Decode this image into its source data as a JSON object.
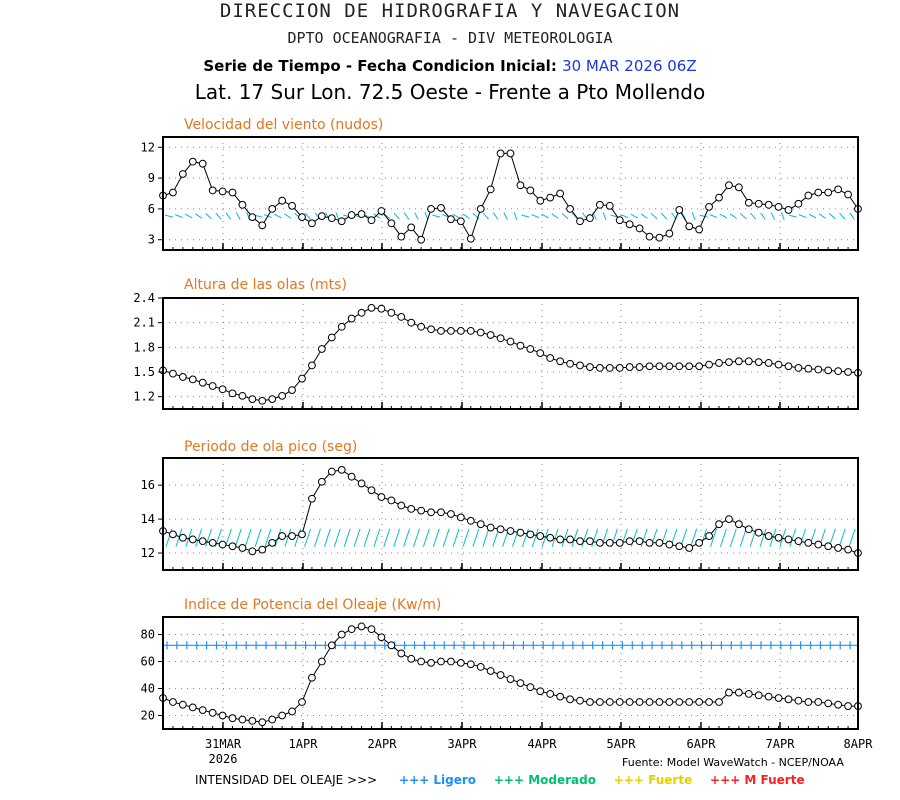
{
  "header": {
    "line1": "DIRECCION DE HIDROGRAFIA Y NAVEGACION",
    "line2": "DPTO OCEANOGRAFIA - DIV METEOROLOGIA",
    "line3_label": "Serie de Tiempo - Fecha Condicion Inicial:",
    "line3_date": "30 MAR 2026 06Z",
    "line4": "Lat. 17 Sur  Lon. 72.5 Oeste - Frente a Pto Mollendo"
  },
  "source": "Fuente: Model WaveWatch - NCEP/NOAA",
  "legend": {
    "label": "INTENSIDAD DEL OLEAJE >>>",
    "items": [
      {
        "text": "+++ Ligero",
        "color": "#1e90ff"
      },
      {
        "text": "+++ Moderado",
        "color": "#00c070"
      },
      {
        "text": "+++ Fuerte",
        "color": "#e8d000"
      },
      {
        "text": "+++ M Fuerte",
        "color": "#ff2020"
      }
    ]
  },
  "colors": {
    "title": "#e07820",
    "arrows": "#00bcd4",
    "threshold": "#1e90ff",
    "line": "#000000"
  },
  "chart_data": [
    {
      "type": "line",
      "title": "Velocidad del viento (nudos)",
      "ylim": [
        2,
        13
      ],
      "yticks": [
        3,
        6,
        9,
        12
      ],
      "arrows": true,
      "values": [
        7.3,
        7.6,
        9.4,
        10.6,
        10.4,
        7.8,
        7.7,
        7.6,
        6.4,
        5.2,
        4.4,
        6.0,
        6.8,
        6.3,
        5.2,
        4.6,
        5.3,
        5.1,
        4.8,
        5.4,
        5.5,
        4.9,
        5.8,
        4.6,
        3.3,
        4.2,
        3.0,
        6.0,
        6.1,
        5.0,
        4.8,
        3.1,
        6.0,
        7.9,
        11.4,
        11.4,
        8.3,
        7.8,
        6.8,
        7.1,
        7.5,
        6.0,
        4.8,
        5.1,
        6.4,
        6.3,
        4.9,
        4.5,
        4.1,
        3.3,
        3.2,
        3.6,
        5.9,
        4.3,
        4.0,
        6.2,
        7.1,
        8.3,
        8.1,
        6.6,
        6.5,
        6.4,
        6.2,
        5.9,
        6.5,
        7.3,
        7.6,
        7.6,
        7.9,
        7.4,
        6.0
      ]
    },
    {
      "type": "line",
      "title": "Altura de las olas (mts)",
      "ylim": [
        1.05,
        2.4
      ],
      "yticks": [
        1.2,
        1.5,
        1.8,
        2.1,
        2.4
      ],
      "arrows": false,
      "values": [
        1.52,
        1.48,
        1.44,
        1.41,
        1.37,
        1.33,
        1.29,
        1.24,
        1.21,
        1.17,
        1.15,
        1.17,
        1.21,
        1.28,
        1.42,
        1.58,
        1.78,
        1.92,
        2.05,
        2.15,
        2.22,
        2.28,
        2.27,
        2.22,
        2.17,
        2.1,
        2.05,
        2.02,
        2.0,
        2.0,
        2.0,
        2.0,
        1.98,
        1.95,
        1.91,
        1.87,
        1.82,
        1.78,
        1.73,
        1.67,
        1.63,
        1.6,
        1.58,
        1.56,
        1.55,
        1.55,
        1.55,
        1.56,
        1.56,
        1.57,
        1.57,
        1.57,
        1.57,
        1.57,
        1.57,
        1.59,
        1.61,
        1.62,
        1.63,
        1.63,
        1.62,
        1.61,
        1.59,
        1.57,
        1.55,
        1.54,
        1.53,
        1.52,
        1.51,
        1.5,
        1.49
      ]
    },
    {
      "type": "line",
      "title": "Periodo de ola pico (seg)",
      "ylim": [
        11,
        17.6
      ],
      "yticks": [
        12,
        14,
        16
      ],
      "arrows": true,
      "values": [
        13.3,
        13.1,
        12.9,
        12.8,
        12.7,
        12.6,
        12.5,
        12.4,
        12.3,
        12.1,
        12.2,
        12.6,
        13.0,
        13.0,
        13.1,
        15.2,
        16.2,
        16.8,
        16.9,
        16.5,
        16.1,
        15.7,
        15.3,
        15.1,
        14.8,
        14.6,
        14.5,
        14.4,
        14.4,
        14.3,
        14.1,
        13.9,
        13.7,
        13.5,
        13.4,
        13.3,
        13.2,
        13.1,
        13.0,
        12.9,
        12.8,
        12.8,
        12.7,
        12.7,
        12.6,
        12.6,
        12.6,
        12.7,
        12.7,
        12.6,
        12.6,
        12.5,
        12.4,
        12.3,
        12.6,
        13.0,
        13.7,
        14.0,
        13.7,
        13.4,
        13.2,
        13.0,
        12.9,
        12.8,
        12.7,
        12.6,
        12.5,
        12.4,
        12.3,
        12.2,
        12.0
      ]
    },
    {
      "type": "line",
      "title": "Indice de Potencia del Oleaje (Kw/m)",
      "ylim": [
        10,
        93
      ],
      "yticks": [
        20,
        40,
        60,
        80
      ],
      "arrows": false,
      "threshold": 72,
      "values": [
        33,
        30,
        28,
        26,
        24,
        22,
        20,
        18,
        17,
        16,
        15,
        17,
        20,
        23,
        30,
        48,
        60,
        72,
        80,
        84,
        86,
        84,
        78,
        72,
        66,
        62,
        60,
        59,
        60,
        60,
        59,
        58,
        56,
        53,
        50,
        47,
        44,
        41,
        38,
        36,
        34,
        32,
        31,
        30,
        30,
        30,
        30,
        30,
        30,
        30,
        30,
        30,
        30,
        30,
        30,
        30,
        30,
        37,
        37,
        36,
        35,
        34,
        33,
        32,
        31,
        30,
        30,
        29,
        28,
        27,
        27
      ]
    }
  ],
  "x_axis": {
    "labels": [
      "31MAR",
      "1APR",
      "2APR",
      "3APR",
      "4APR",
      "5APR",
      "6APR",
      "7APR",
      "8APR"
    ],
    "sublabel": "2026"
  }
}
